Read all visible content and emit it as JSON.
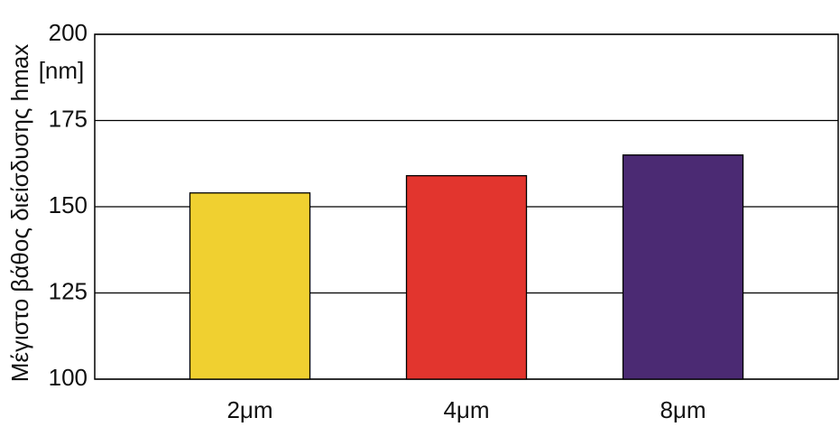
{
  "chart_data": {
    "type": "bar",
    "ylabel": "Μέγιστο βάθος διείσδυσης hmax",
    "unit": "[nm]",
    "categories": [
      "2μm",
      "4μm",
      "8μm"
    ],
    "values": [
      154,
      159,
      165
    ],
    "colors": [
      "#f0d030",
      "#e2352e",
      "#4b2a73"
    ],
    "ylim": [
      100,
      200
    ],
    "yticks": [
      100,
      125,
      150,
      175,
      200
    ],
    "grid": true
  }
}
